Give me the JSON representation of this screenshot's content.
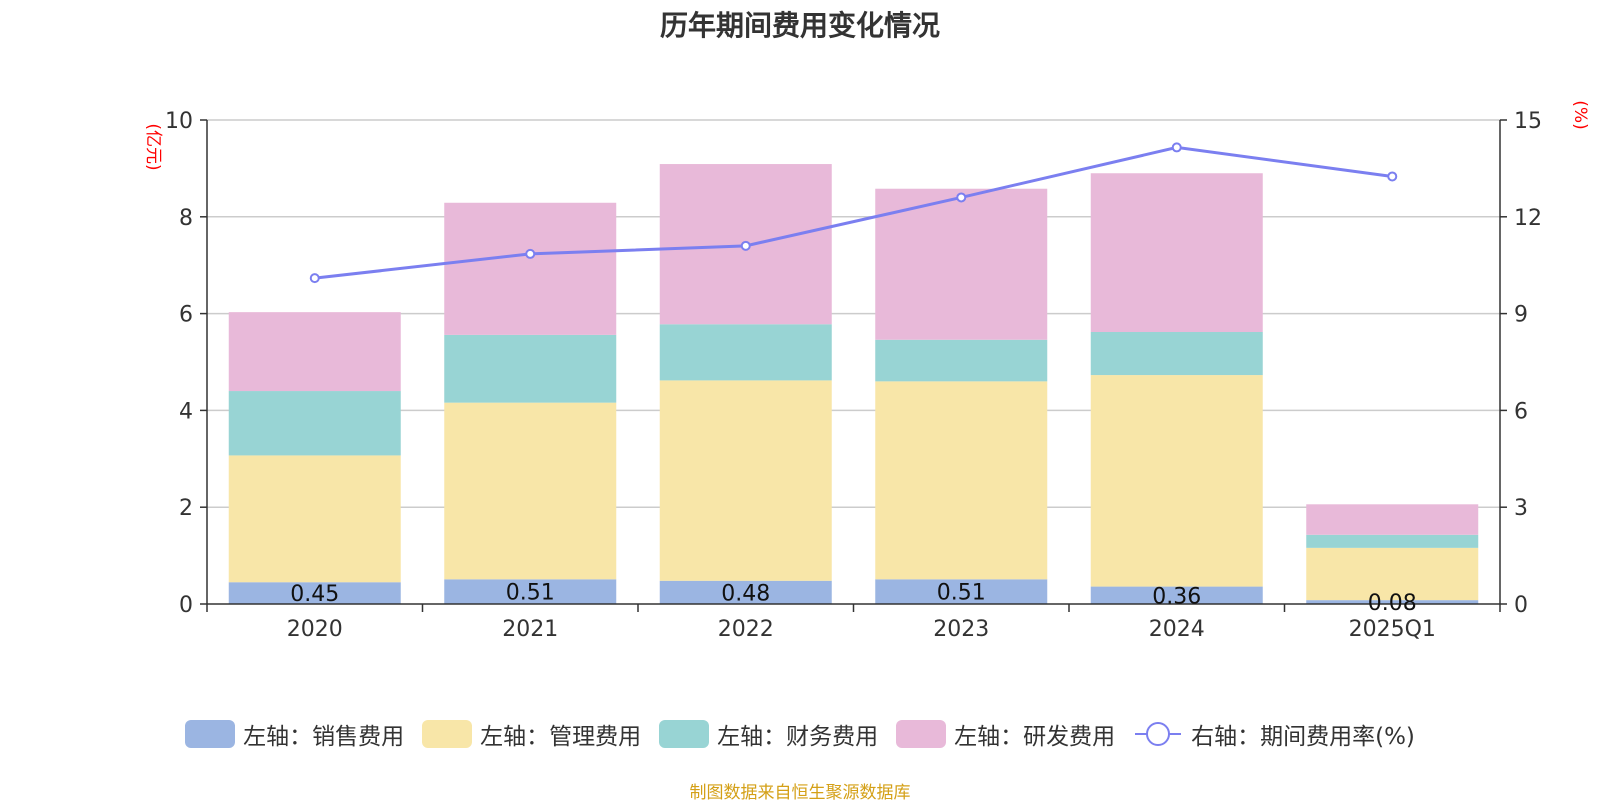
{
  "chart_data": {
    "type": "bar",
    "stacked": true,
    "title": "历年期间费用变化情况",
    "categories": [
      "2020",
      "2021",
      "2022",
      "2023",
      "2024",
      "2025Q1"
    ],
    "left_axis": {
      "unit": "(亿元)",
      "ylim": [
        0,
        10
      ],
      "ticks": [
        "0",
        "2",
        "4",
        "6",
        "8",
        "10"
      ]
    },
    "right_axis": {
      "unit": "(%)",
      "ylim": [
        0,
        15
      ],
      "ticks": [
        "0",
        "3",
        "6",
        "9",
        "12",
        "15"
      ]
    },
    "series": [
      {
        "name": "左轴：销售费用",
        "type": "bar",
        "axis": "left",
        "color": "#9bb5e2",
        "values": [
          0.45,
          0.51,
          0.48,
          0.51,
          0.36,
          0.08
        ],
        "labels": [
          "0.45",
          "0.51",
          "0.48",
          "0.51",
          "0.36",
          "0.08"
        ]
      },
      {
        "name": "左轴：管理费用",
        "type": "bar",
        "axis": "left",
        "color": "#f8e6a8",
        "values": [
          2.62,
          3.65,
          4.14,
          4.09,
          4.37,
          1.08
        ]
      },
      {
        "name": "左轴：财务费用",
        "type": "bar",
        "axis": "left",
        "color": "#98d4d4",
        "values": [
          1.33,
          1.4,
          1.16,
          0.86,
          0.89,
          0.27
        ]
      },
      {
        "name": "左轴：研发费用",
        "type": "bar",
        "axis": "left",
        "color": "#e8b9d9",
        "values": [
          1.63,
          2.73,
          3.31,
          3.12,
          3.28,
          0.63
        ]
      },
      {
        "name": "右轴：期间费用率(%)",
        "type": "line",
        "axis": "right",
        "color": "#7b7ff0",
        "values": [
          10.1,
          10.85,
          11.1,
          12.6,
          14.15,
          13.25
        ]
      }
    ],
    "grid": true,
    "legend_position": "bottom"
  },
  "source_text": "制图数据来自恒生聚源数据库",
  "colors": {
    "axis_unit": "#ff0000",
    "source": "#d4a017",
    "grid": "#cccccc"
  }
}
